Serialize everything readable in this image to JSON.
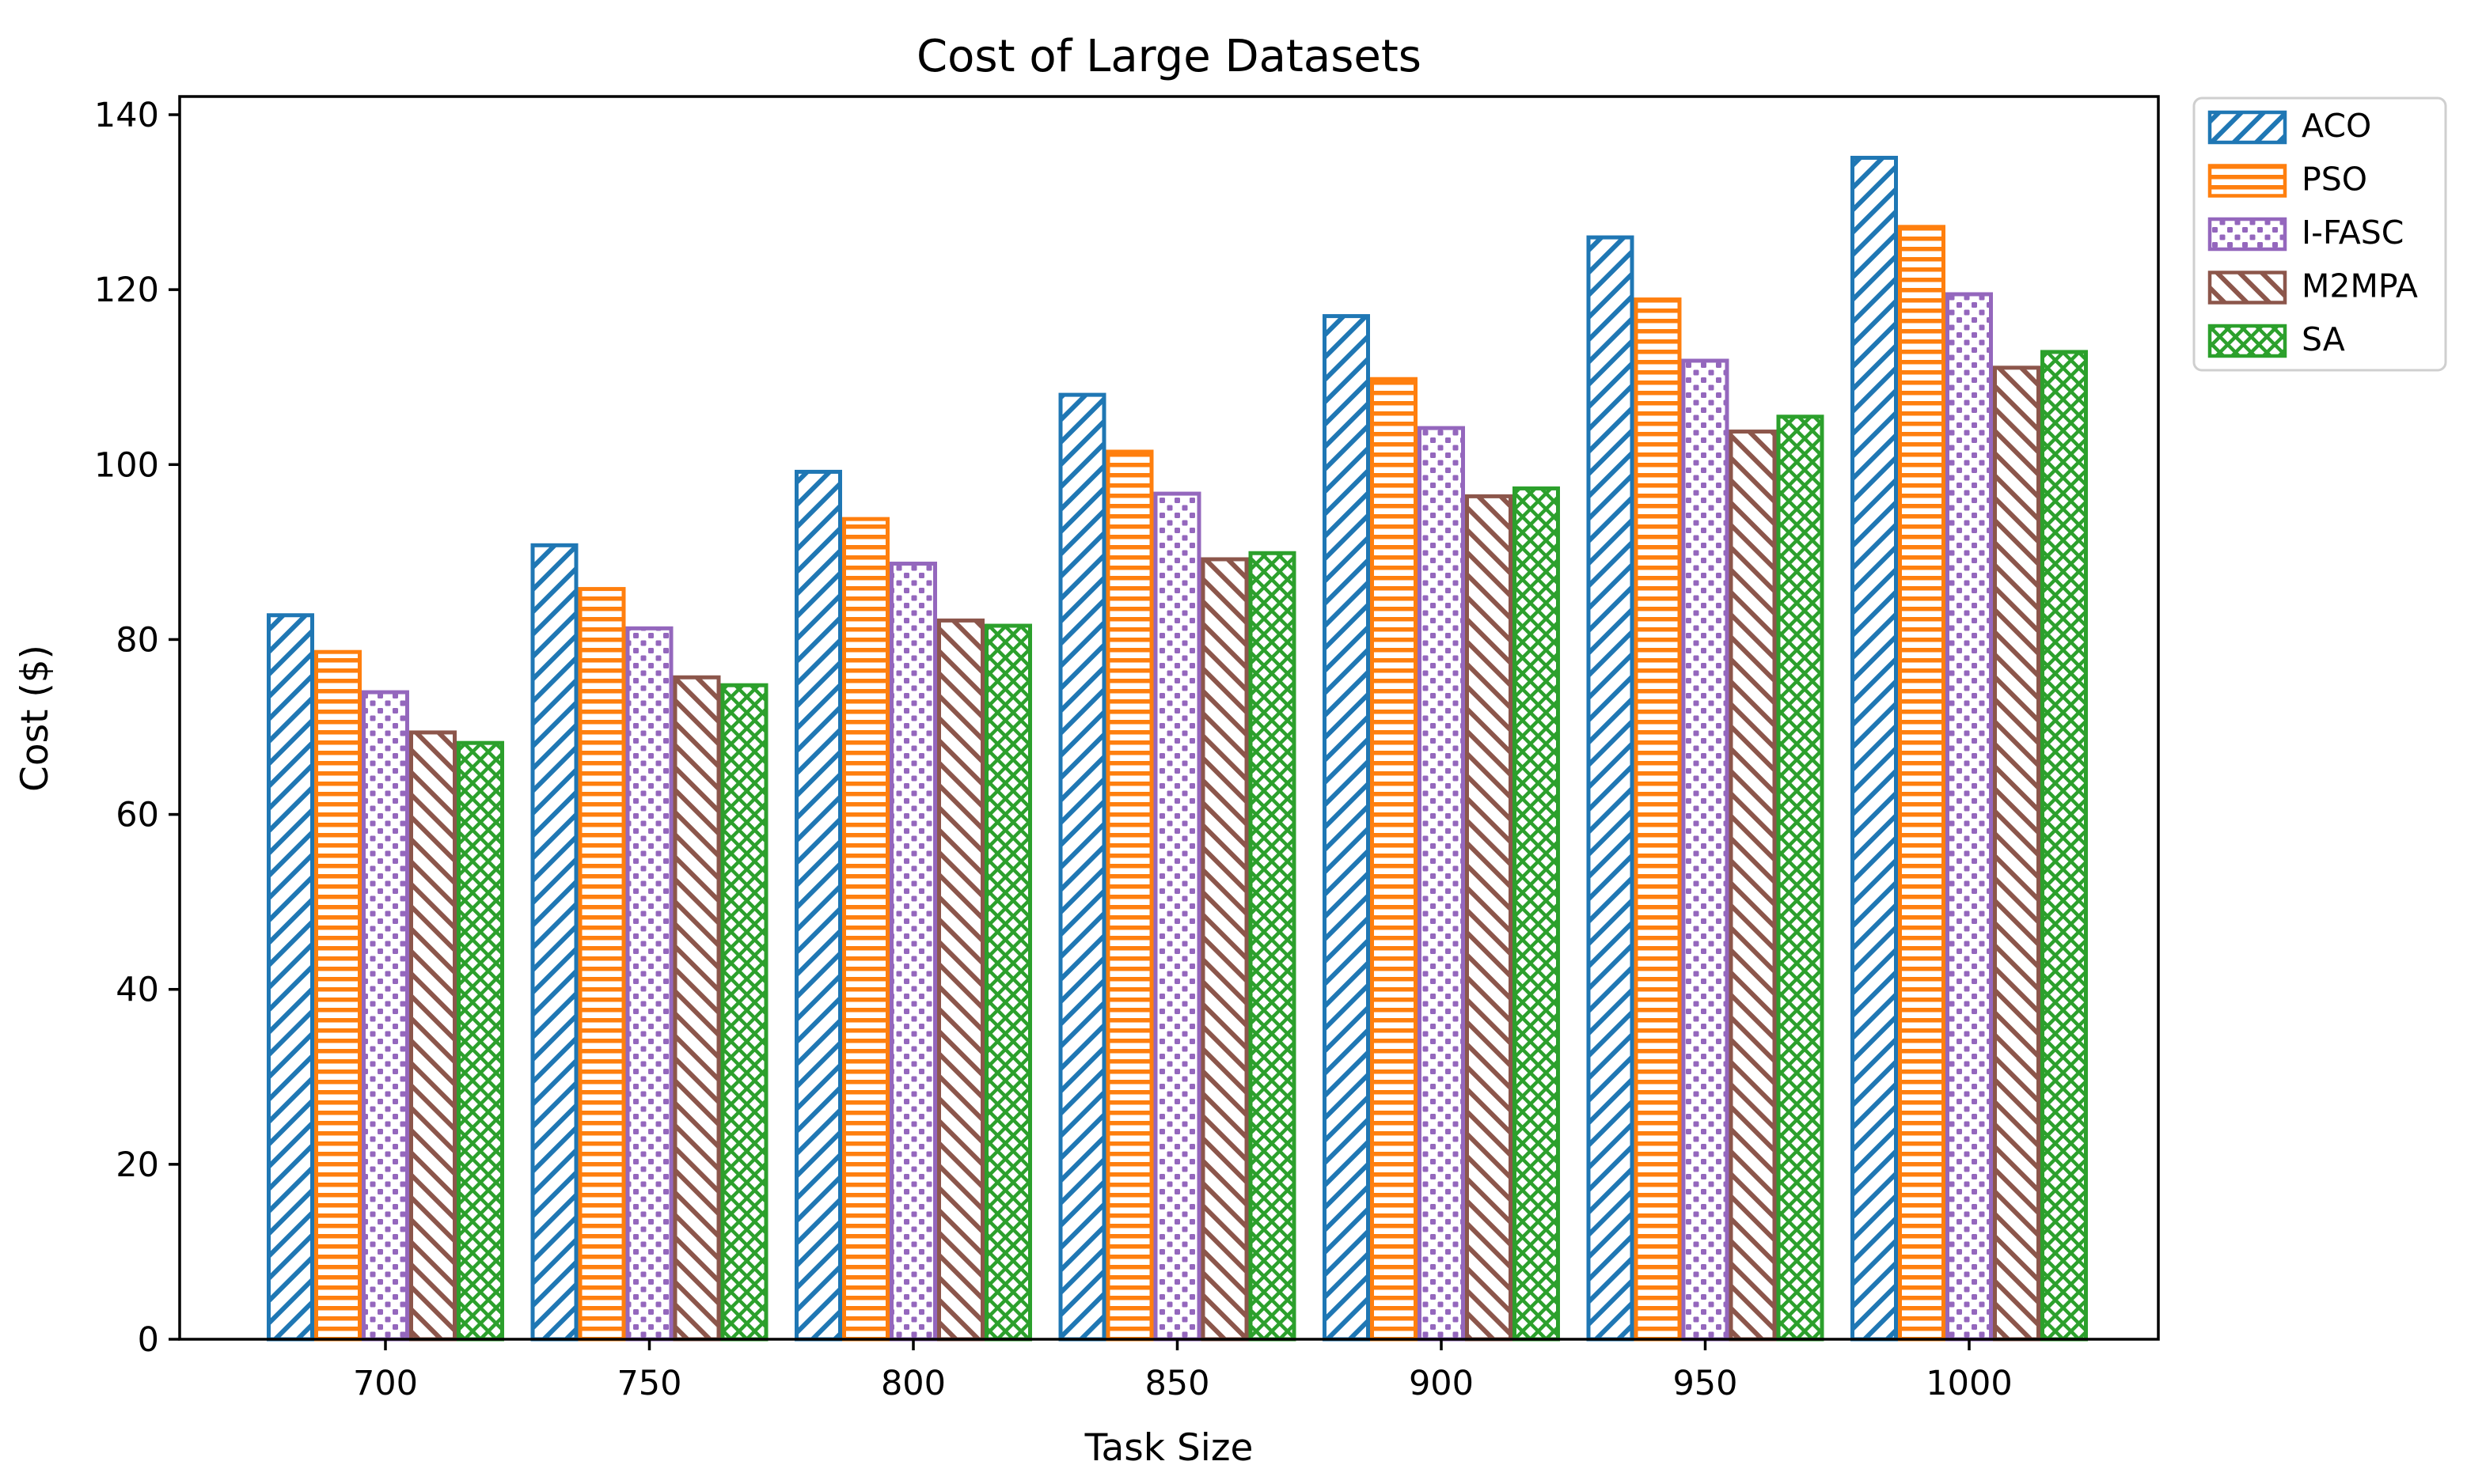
{
  "figure": {
    "title": "Cost of Large Datasets",
    "xlabel": "Task Size",
    "ylabel": "Cost ($)"
  },
  "chart_data": {
    "type": "bar",
    "title": "Cost of Large Datasets",
    "xlabel": "Task Size",
    "ylabel": "Cost ($)",
    "categories": [
      "700",
      "750",
      "800",
      "850",
      "900",
      "950",
      "1000"
    ],
    "series": [
      {
        "name": "ACO",
        "color": "#1f77b4",
        "hatch": "//",
        "values": [
          83.0,
          91.0,
          99.4,
          108.2,
          117.2,
          126.2,
          135.3
        ]
      },
      {
        "name": "PSO",
        "color": "#ff7f0e",
        "hatch": "-",
        "values": [
          78.8,
          86.0,
          94.0,
          101.7,
          110.0,
          119.1,
          127.4
        ]
      },
      {
        "name": "I-FASC",
        "color": "#9467bd",
        "hatch": "..",
        "values": [
          74.2,
          81.5,
          88.9,
          96.9,
          104.4,
          112.1,
          119.7
        ]
      },
      {
        "name": "M2MPA",
        "color": "#8c564b",
        "hatch": "\\\\",
        "values": [
          69.6,
          75.9,
          82.4,
          89.4,
          96.6,
          104.0,
          111.3
        ]
      },
      {
        "name": "SA",
        "color": "#2ca02c",
        "hatch": "xx",
        "values": [
          68.4,
          75.0,
          81.8,
          90.1,
          97.5,
          105.7,
          113.1
        ]
      }
    ],
    "yticks": [
      0,
      20,
      40,
      60,
      80,
      100,
      120,
      140
    ],
    "ylim": [
      0,
      142.1
    ],
    "bar_fill": "#ffffff",
    "axis_color": "#000000",
    "legend": {
      "position": "upper-right-outside",
      "border_color": "#cfcfcf",
      "background": "#ffffff",
      "entries": [
        "ACO",
        "PSO",
        "I-FASC",
        "M2MPA",
        "SA"
      ]
    },
    "grid": false
  }
}
